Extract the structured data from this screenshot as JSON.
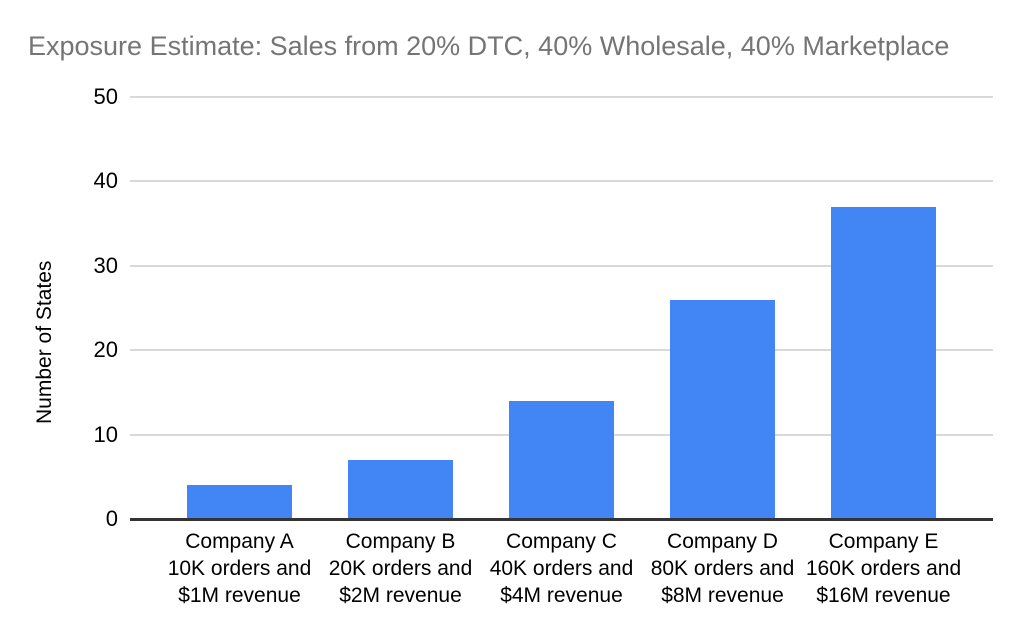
{
  "chart_data": {
    "type": "bar",
    "title": "Exposure Estimate: Sales from 20% DTC, 40% Wholesale, 40% Marketplace",
    "xlabel": "",
    "ylabel": "Number of States",
    "ylim": [
      0,
      50
    ],
    "yticks": [
      0,
      10,
      20,
      30,
      40,
      50
    ],
    "grid": true,
    "legend_position": "none",
    "categories": [
      "Company A\n10K orders and\n$1M revenue",
      "Company B\n20K orders and\n$2M revenue",
      "Company C\n40K orders and\n$4M revenue",
      "Company D\n80K orders and\n$8M revenue",
      "Company E\n160K orders and\n$16M revenue"
    ],
    "values": [
      4,
      7,
      14,
      26,
      37
    ]
  },
  "colors": {
    "background": "#ffffff",
    "title_text": "#757575",
    "axis_text": "#000000",
    "bar": "#4285f4",
    "gridline": "#d9d9d9",
    "baseline": "#333333"
  }
}
